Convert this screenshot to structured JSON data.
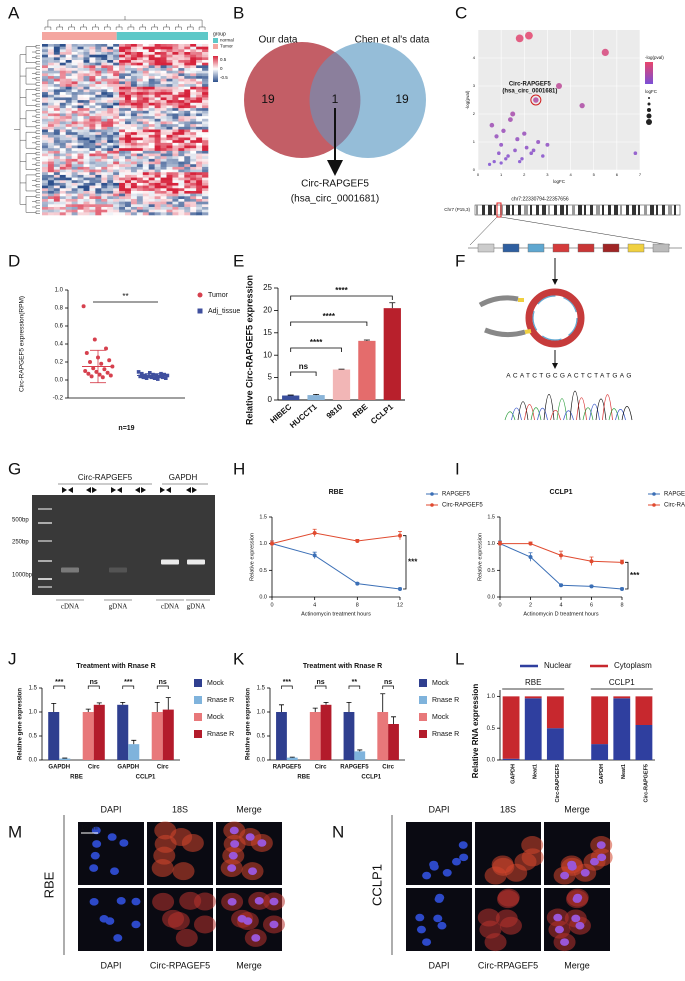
{
  "panel_labels": [
    "A",
    "B",
    "C",
    "D",
    "E",
    "F",
    "G",
    "H",
    "I",
    "J",
    "K",
    "L",
    "M",
    "N"
  ],
  "heatmap": {
    "legend_title": "group",
    "groups": [
      "normal",
      "Tumor"
    ],
    "scale_labels": [
      "0.5",
      "0",
      "-0.5"
    ]
  },
  "venn": {
    "left_label": "Our data",
    "right_label": "Chen et al's data",
    "left_only": 19,
    "both": 1,
    "right_only": 19,
    "name": "Circ-RAPGEF5",
    "id": "(hsa_circ_0001681)"
  },
  "construct": {
    "locus": "chr7:22330794-22357656",
    "band": "Chr7 (P15,3)",
    "sequence": "ACATCTGCGACTCTATGAG"
  },
  "gel": {
    "lanes_top": [
      "Circ-RAPGEF5",
      "GAPDH"
    ],
    "markers": [
      "500bp",
      "250bp",
      "1000bp"
    ],
    "lanes_bottom": [
      "cDNA",
      "gDNA",
      "cDNA",
      "gDNA"
    ]
  },
  "images": [
    {
      "cell_line": "RBE",
      "top": [
        "DAPI",
        "18S",
        "Merge"
      ],
      "bottom": [
        "DAPI",
        "Circ-RPAGEF5",
        "Merge"
      ],
      "scale": "10 um"
    },
    {
      "cell_line": "CCLP1",
      "top": [
        "DAPI",
        "18S",
        "Merge"
      ],
      "bottom": [
        "DAPI",
        "Circ-RPAGEF5",
        "Merge"
      ]
    }
  ],
  "chart_data": [
    {
      "type": "scatter",
      "xlabel": "logFC",
      "ylabel": "-log(pval)",
      "annotation": "Circ-RAPGEF5",
      "annotation_sub": "(hsa_circ_0001681)",
      "legend_color_title": "-log(pval)",
      "legend_size_title": "logFC",
      "xlim": [
        0,
        7
      ],
      "ylim": [
        0,
        5
      ],
      "xticks": [
        0,
        1,
        2,
        3,
        4,
        5,
        6,
        7
      ],
      "yticks": [
        0,
        1,
        2,
        3,
        4
      ],
      "x": [
        1.8,
        2.2,
        2.5,
        3.5,
        4.5,
        5.5,
        6.8,
        0.6,
        0.8,
        1.0,
        1.1,
        1.3,
        1.4,
        1.6,
        1.7,
        1.9,
        2.0,
        2.1,
        2.3,
        2.6,
        2.8,
        3.0,
        0.7,
        0.9,
        1.2,
        1.5,
        1.8,
        2.4,
        0.5,
        1.0
      ],
      "values": [
        4.7,
        4.8,
        2.5,
        3.0,
        2.3,
        4.2,
        0.6,
        1.6,
        1.2,
        0.9,
        1.4,
        0.5,
        1.8,
        0.7,
        1.1,
        0.4,
        1.3,
        0.8,
        0.6,
        1.0,
        0.5,
        0.9,
        0.3,
        0.6,
        0.4,
        2.0,
        0.3,
        0.7,
        0.2,
        0.25
      ],
      "color_low": "#7b4fd6",
      "color_high": "#e8456b"
    },
    {
      "type": "dotplot",
      "ylabel": "Circ-RAPGEF5 expression(RPM)",
      "xlabel": "n=19",
      "annotation": "**",
      "ylim": [
        -0.2,
        1.0
      ],
      "yticks": [
        -0.2,
        {
          "value": 0,
          "label": "0.0"
        },
        0.2,
        0.4,
        0.6,
        0.8,
        {
          "value": 1,
          "label": "1.0"
        }
      ],
      "series": [
        {
          "name": "Tumor",
          "color": "#d6404e",
          "values": [
            0.82,
            0.45,
            0.35,
            0.3,
            0.25,
            0.22,
            0.2,
            0.18,
            0.15,
            0.13,
            0.12,
            0.1,
            0.09,
            0.08,
            0.07,
            0.06,
            0.05,
            0.04,
            0.03
          ],
          "mean": 0.15,
          "error": 0.18
        },
        {
          "name": "Adj_tissue",
          "color": "#3f4f9e",
          "values": [
            0.09,
            0.08,
            0.07,
            0.07,
            0.06,
            0.06,
            0.05,
            0.05,
            0.05,
            0.04,
            0.04,
            0.04,
            0.03,
            0.03,
            0.03,
            0.02,
            0.02,
            0.02,
            0.01
          ],
          "mean": 0.05,
          "error": 0.02
        }
      ]
    },
    {
      "type": "bar",
      "ylabel": "Relative Circ-RAPGEF5 expression",
      "categories": [
        "HIBEC",
        "HUCCT1",
        "9810",
        "RBE",
        "CCLP1"
      ],
      "values": [
        1.0,
        1.1,
        6.8,
        13.2,
        20.5
      ],
      "errors": [
        0.1,
        0.15,
        0.1,
        0.2,
        1.2
      ],
      "colors": [
        "#3a4f9c",
        "#8ab4d8",
        "#f2b6b6",
        "#e46c6c",
        "#b8202c"
      ],
      "ylim": [
        0,
        25
      ],
      "yticks": [
        0,
        5,
        10,
        15,
        20,
        25
      ],
      "annotations": [
        "ns",
        "****",
        "****",
        "****"
      ]
    },
    {
      "type": "line",
      "title": "RBE",
      "xlabel": "Actinomycin treatment hours",
      "ylabel": "Relative expression",
      "annotation": "***",
      "x": [
        0,
        4,
        8,
        12
      ],
      "xlim": [
        0,
        12
      ],
      "xticks": [
        0,
        4,
        8,
        12
      ],
      "ylim": [
        0,
        1.5
      ],
      "yticks": [
        {
          "value": 0,
          "label": "0.0"
        },
        0.5,
        {
          "value": 1,
          "label": "1.0"
        },
        1.5
      ],
      "series": [
        {
          "name": "RAPGEF5",
          "color": "#3b6fb6",
          "values": [
            1.0,
            0.78,
            0.25,
            0.15
          ],
          "errors": [
            0.05,
            0.06,
            0.02,
            0.02
          ]
        },
        {
          "name": "Circ-RAPGEF5",
          "color": "#e04a2f",
          "values": [
            1.0,
            1.2,
            1.05,
            1.15
          ],
          "errors": [
            0.05,
            0.07,
            0.03,
            0.08
          ]
        }
      ]
    },
    {
      "type": "line",
      "title": "CCLP1",
      "xlabel": "Actinomycin D treatment hours",
      "ylabel": "Relative expression",
      "annotation": "***",
      "x": [
        0,
        2,
        4,
        6,
        8
      ],
      "xlim": [
        0,
        8
      ],
      "xticks": [
        0,
        2,
        4,
        6,
        8
      ],
      "ylim": [
        0,
        1.5
      ],
      "yticks": [
        {
          "value": 0,
          "label": "0.0"
        },
        0.5,
        {
          "value": 1,
          "label": "1.0"
        },
        1.5
      ],
      "series": [
        {
          "name": "RAPGEF5",
          "color": "#3b6fb6",
          "values": [
            1.0,
            0.75,
            0.22,
            0.2,
            0.15
          ],
          "errors": [
            0.05,
            0.08,
            0.02,
            0.02,
            0.02
          ]
        },
        {
          "name": "Circ-RAPGEF5",
          "color": "#e04a2f",
          "values": [
            1.0,
            1.0,
            0.78,
            0.67,
            0.65
          ],
          "errors": [
            0.04,
            0.03,
            0.08,
            0.08,
            0.04
          ]
        }
      ]
    },
    {
      "type": "grouped_bar",
      "title": "Treatment with Rnase R",
      "ylabel": "Relative gene expression",
      "categories": [
        "GAPDH",
        "Circ",
        "GAPDH",
        "Circ"
      ],
      "groups": [
        "RBE",
        "CCLP1"
      ],
      "annotations": [
        "***",
        "ns",
        "***",
        "ns"
      ],
      "ylim": [
        0,
        1.5
      ],
      "yticks": [
        {
          "value": 0,
          "label": "0.0"
        },
        0.5,
        {
          "value": 1,
          "label": "1.0"
        },
        1.5
      ],
      "series": [
        {
          "name": "Mock",
          "color": "#2f3f8f",
          "values": [
            1.0,
            null,
            1.15,
            null
          ],
          "errors": [
            0.18,
            null,
            0.05,
            null
          ]
        },
        {
          "name": "Rnase R",
          "color": "#7fb3dc",
          "values": [
            0.03,
            null,
            0.33,
            null
          ],
          "errors": [
            0.01,
            null,
            0.08,
            null
          ]
        },
        {
          "name": "Mock",
          "color": "#e8787a",
          "values": [
            null,
            1.0,
            null,
            1.0
          ],
          "errors": [
            null,
            0.06,
            null,
            0.2
          ]
        },
        {
          "name": "Rnase R",
          "color": "#b31b2b",
          "values": [
            null,
            1.15,
            null,
            1.05
          ],
          "errors": [
            null,
            0.04,
            null,
            0.25
          ]
        }
      ]
    },
    {
      "type": "grouped_bar",
      "title": "Treatment with Rnase R",
      "ylabel": "Relative gene expression",
      "categories": [
        "RAPGEF5",
        "Circ",
        "RAPGEF5",
        "Circ"
      ],
      "groups": [
        "RBE",
        "CCLP1"
      ],
      "annotations": [
        "***",
        "ns",
        "**",
        "ns"
      ],
      "ylim": [
        0,
        1.5
      ],
      "yticks": [
        {
          "value": 0,
          "label": "0.0"
        },
        0.5,
        {
          "value": 1,
          "label": "1.0"
        },
        1.5
      ],
      "series": [
        {
          "name": "Mock",
          "color": "#2f3f8f",
          "values": [
            1.0,
            null,
            1.0,
            null
          ],
          "errors": [
            0.15,
            null,
            0.2,
            null
          ]
        },
        {
          "name": "Rnase R",
          "color": "#7fb3dc",
          "values": [
            0.05,
            null,
            0.18,
            null
          ],
          "errors": [
            0.01,
            null,
            0.03,
            null
          ]
        },
        {
          "name": "Mock",
          "color": "#e8787a",
          "values": [
            null,
            1.0,
            null,
            1.0
          ],
          "errors": [
            null,
            0.08,
            null,
            0.38
          ]
        },
        {
          "name": "Rnase R",
          "color": "#b31b2b",
          "values": [
            null,
            1.15,
            null,
            0.75
          ],
          "errors": [
            null,
            0.05,
            null,
            0.15
          ]
        }
      ]
    },
    {
      "type": "stacked_bar",
      "ylabel": "Relative RNA expression",
      "categories": [
        "GAPDH",
        "Neat1",
        "Circ-RAPGEF5",
        "GAPDH",
        "Neat1",
        "Circ-RAPGEF5"
      ],
      "groups": [
        "RBE",
        "CCLP1"
      ],
      "ylim": [
        0,
        1.1
      ],
      "yticks": [
        {
          "value": 0,
          "label": "0.0"
        },
        0.5,
        {
          "value": 1,
          "label": "1.0"
        }
      ],
      "series": [
        {
          "name": "Nuclear",
          "color": "#2f3f9f",
          "values": [
            0.02,
            0.97,
            0.5,
            0.25,
            0.97,
            0.55
          ]
        },
        {
          "name": "Cytoplasm",
          "color": "#c7282e",
          "values": [
            0.98,
            0.03,
            0.5,
            0.75,
            0.03,
            0.45
          ]
        }
      ]
    }
  ]
}
